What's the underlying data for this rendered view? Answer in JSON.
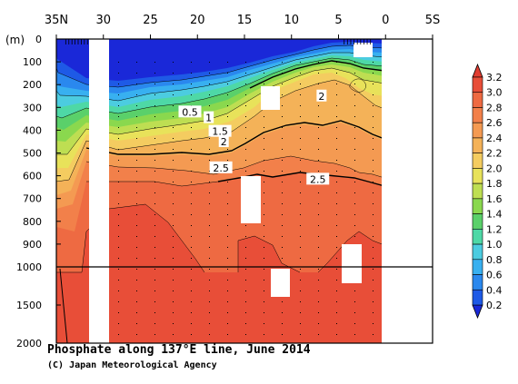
{
  "chart_data": {
    "type": "heatmap",
    "title": "Phosphate along 137°E line, June 2014",
    "credit": "(C) Japan Meteorological Agency",
    "x_axis": {
      "ticks": [
        {
          "value": 35,
          "label": "35N"
        },
        {
          "value": 30,
          "label": "30"
        },
        {
          "value": 25,
          "label": "25"
        },
        {
          "value": 20,
          "label": "20"
        },
        {
          "value": 15,
          "label": "15"
        },
        {
          "value": 10,
          "label": "10"
        },
        {
          "value": 5,
          "label": "5"
        },
        {
          "value": 0,
          "label": "0"
        },
        {
          "value": -5,
          "label": "5S"
        }
      ],
      "range": [
        35,
        -5
      ]
    },
    "y_axis": {
      "unit_label": "(m)",
      "upper_ticks": [
        0,
        100,
        200,
        300,
        400,
        500,
        600,
        700,
        800,
        900,
        1000
      ],
      "lower_ticks": [
        1500,
        2000
      ],
      "upper_range": [
        0,
        1000
      ],
      "lower_range": [
        1000,
        2000
      ],
      "break_depth": 1000
    },
    "colorbar": {
      "levels": [
        "3.2",
        "3.0",
        "2.8",
        "2.6",
        "2.4",
        "2.2",
        "2.0",
        "1.8",
        "1.6",
        "1.4",
        "1.2",
        "1.0",
        "0.8",
        "0.6",
        "0.4",
        "0.2"
      ],
      "colors": [
        "#1a28d8",
        "#1e5ae6",
        "#2a88ee",
        "#38b0f0",
        "#4ccce0",
        "#4ed8a6",
        "#5ad06a",
        "#8ad84e",
        "#bede52",
        "#e8e25a",
        "#f4cc60",
        "#f4b258",
        "#f49a52",
        "#f2804a",
        "#ee6a42",
        "#e84e38",
        "#e03c30"
      ]
    },
    "contour_labels": [
      {
        "text": "0.5",
        "lat": 20.8,
        "depth": 320
      },
      {
        "text": "1",
        "lat": 18.8,
        "depth": 345
      },
      {
        "text": "1.5",
        "lat": 17.6,
        "depth": 405
      },
      {
        "text": "2",
        "lat": 17.2,
        "depth": 450
      },
      {
        "text": "2.5",
        "lat": 17.5,
        "depth": 565
      },
      {
        "text": "2",
        "lat": 6.8,
        "depth": 250
      },
      {
        "text": "2.5",
        "lat": 7.2,
        "depth": 615
      }
    ],
    "data_gaps_lat": [
      [
        31.4,
        29.0
      ],
      [
        1.6,
        -5.0
      ]
    ]
  }
}
